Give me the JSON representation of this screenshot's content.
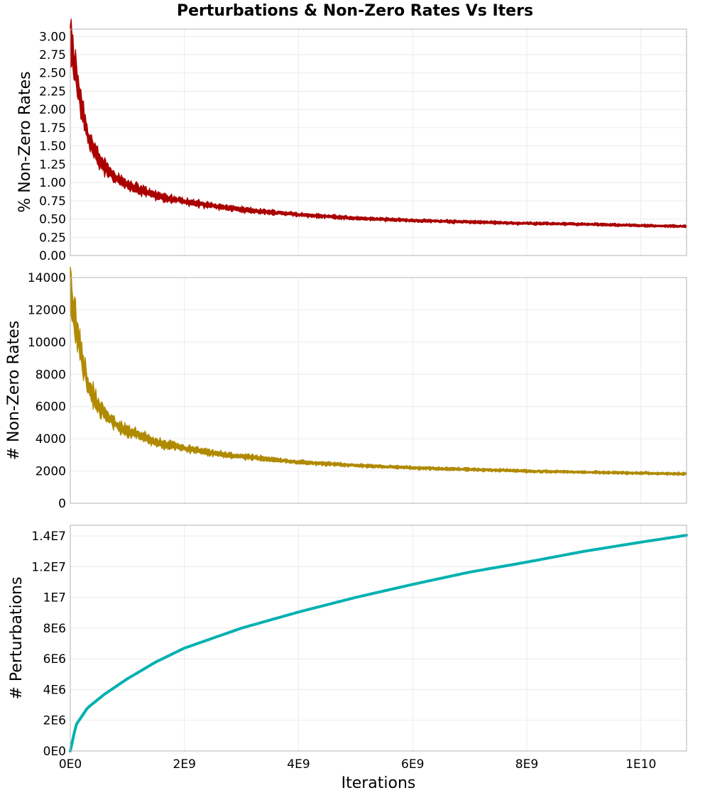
{
  "colors": {
    "rate_pct": "#aa0000",
    "count": "#b08a00",
    "perturbations": "#00b0b0",
    "grid": "#ebebeb",
    "frame": "#b3b3b3"
  },
  "chart_data": {
    "type": "line",
    "title": "Perturbations & Non-Zero Rates Vs Iters",
    "xlabel": "Iterations",
    "xlim": [
      0,
      10800000000
    ],
    "xticks": [
      {
        "value": 0,
        "label": "0E0"
      },
      {
        "value": 2000000000,
        "label": "2E9"
      },
      {
        "value": 4000000000,
        "label": "4E9"
      },
      {
        "value": 6000000000,
        "label": "6E9"
      },
      {
        "value": 8000000000,
        "label": "8E9"
      },
      {
        "value": 10000000000,
        "label": "1E10"
      }
    ],
    "grid": true,
    "panels": [
      {
        "id": "pct",
        "ylabel": "% Non-Zero Rates",
        "ylim": [
          0,
          3.1
        ],
        "yticks": [
          {
            "value": 0,
            "label": "0.00"
          },
          {
            "value": 0.25,
            "label": "0.25"
          },
          {
            "value": 0.5,
            "label": "0.50"
          },
          {
            "value": 0.75,
            "label": "0.75"
          },
          {
            "value": 1.0,
            "label": "1.00"
          },
          {
            "value": 1.25,
            "label": "1.25"
          },
          {
            "value": 1.5,
            "label": "1.50"
          },
          {
            "value": 1.75,
            "label": "1.75"
          },
          {
            "value": 2.0,
            "label": "2.00"
          },
          {
            "value": 2.25,
            "label": "2.25"
          },
          {
            "value": 2.5,
            "label": "2.50"
          },
          {
            "value": 2.75,
            "label": "2.75"
          },
          {
            "value": 3.0,
            "label": "3.00"
          }
        ],
        "series": [
          {
            "color": "#aa0000",
            "style": "noisy-band",
            "x": [
              0,
              50000000,
              150000000,
              300000000,
              500000000,
              750000000,
              1000000000,
              1500000000,
              2000000000,
              2500000000,
              3000000000,
              4000000000,
              5000000000,
              6000000000,
              7000000000,
              8000000000,
              9000000000,
              10000000000,
              10800000000
            ],
            "y": [
              3.0,
              2.7,
              2.25,
              1.65,
              1.3,
              1.1,
              0.97,
              0.82,
              0.74,
              0.68,
              0.63,
              0.56,
              0.51,
              0.48,
              0.46,
              0.44,
              0.43,
              0.41,
              0.4
            ]
          }
        ]
      },
      {
        "id": "count",
        "ylabel": "# Non-Zero Rates",
        "ylim": [
          0,
          14000
        ],
        "yticks": [
          {
            "value": 0,
            "label": "0"
          },
          {
            "value": 2000,
            "label": "2000"
          },
          {
            "value": 4000,
            "label": "4000"
          },
          {
            "value": 6000,
            "label": "6000"
          },
          {
            "value": 8000,
            "label": "8000"
          },
          {
            "value": 10000,
            "label": "10000"
          },
          {
            "value": 12000,
            "label": "12000"
          },
          {
            "value": 14000,
            "label": "14000"
          }
        ],
        "series": [
          {
            "color": "#b08a00",
            "style": "noisy-band",
            "x": [
              0,
              50000000,
              150000000,
              300000000,
              500000000,
              750000000,
              1000000000,
              1500000000,
              2000000000,
              2500000000,
              3000000000,
              4000000000,
              5000000000,
              6000000000,
              7000000000,
              8000000000,
              9000000000,
              10000000000,
              10800000000
            ],
            "y": [
              13400,
              12000,
              10000,
              7400,
              6000,
              5000,
              4500,
              3800,
              3400,
              3100,
              2900,
              2550,
              2350,
              2200,
              2100,
              2000,
              1930,
              1870,
              1820
            ]
          }
        ]
      },
      {
        "id": "pert",
        "ylabel": "# Perturbations",
        "ylim": [
          0,
          14700000
        ],
        "yticks": [
          {
            "value": 0,
            "label": "0E0"
          },
          {
            "value": 2000000,
            "label": "2E6"
          },
          {
            "value": 4000000,
            "label": "4E6"
          },
          {
            "value": 6000000,
            "label": "6E6"
          },
          {
            "value": 8000000,
            "label": "8E6"
          },
          {
            "value": 10000000,
            "label": "1E7"
          },
          {
            "value": 12000000,
            "label": "1.2E7"
          },
          {
            "value": 14000000,
            "label": "1.4E7"
          }
        ],
        "series": [
          {
            "color": "#00b0b0",
            "style": "smooth",
            "x": [
              0,
              100000000,
              300000000,
              600000000,
              1000000000,
              1500000000,
              2000000000,
              3000000000,
              4000000000,
              5000000000,
              6000000000,
              7000000000,
              8000000000,
              9000000000,
              10000000000,
              10800000000
            ],
            "y": [
              0,
              1700000,
              2800000,
              3700000,
              4700000,
              5800000,
              6700000,
              8000000,
              9050000,
              10000000,
              10850000,
              11650000,
              12300000,
              13000000,
              13600000,
              14050000
            ]
          }
        ]
      }
    ]
  }
}
